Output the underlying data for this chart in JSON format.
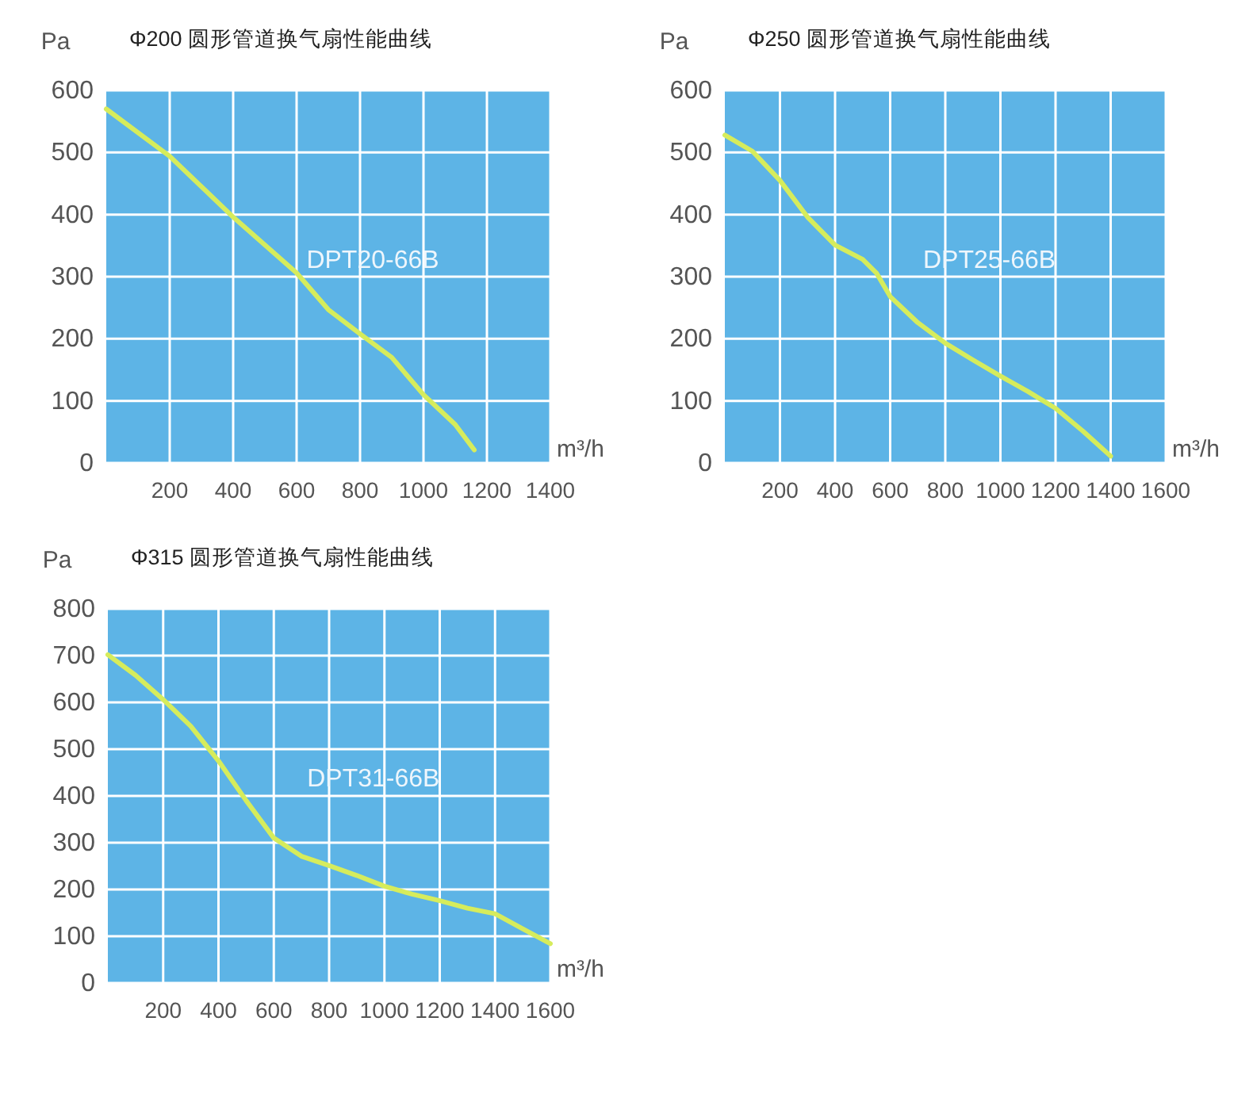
{
  "chart_data": [
    {
      "type": "line",
      "title": "Φ200 圆形管道换气扇性能曲线",
      "xlabel": "m³/h",
      "ylabel": "Pa",
      "grid": true,
      "xlim": [
        0,
        1400
      ],
      "ylim": [
        0,
        600
      ],
      "xticks": [
        200,
        400,
        600,
        800,
        1000,
        1200,
        1400
      ],
      "yticks": [
        0,
        100,
        200,
        300,
        400,
        500,
        600
      ],
      "x": [
        0,
        200,
        400,
        600,
        700,
        800,
        900,
        1000,
        1100,
        1160
      ],
      "series": [
        {
          "name": "DPT20-66B",
          "color": "#d6ec5c",
          "values": [
            570,
            494,
            396,
            306,
            247,
            208,
            170,
            110,
            62,
            21
          ]
        }
      ]
    },
    {
      "type": "line",
      "title": "Φ250 圆形管道换气扇性能曲线",
      "xlabel": "m³/h",
      "ylabel": "Pa",
      "grid": true,
      "xlim": [
        0,
        1600
      ],
      "ylim": [
        0,
        600
      ],
      "xticks": [
        200,
        400,
        600,
        800,
        1000,
        1200,
        1400,
        1600
      ],
      "yticks": [
        0,
        100,
        200,
        300,
        400,
        500,
        600
      ],
      "x": [
        0,
        100,
        200,
        300,
        400,
        500,
        550,
        600,
        700,
        800,
        900,
        1000,
        1100,
        1200,
        1300,
        1400
      ],
      "series": [
        {
          "name": "DPT25-66B",
          "color": "#d6ec5c",
          "values": [
            528,
            502,
            455,
            396,
            351,
            328,
            306,
            268,
            226,
            193,
            166,
            140,
            115,
            88,
            51,
            11
          ]
        }
      ]
    },
    {
      "type": "line",
      "title": "Φ315 圆形管道换气扇性能曲线",
      "xlabel": "m³/h",
      "ylabel": "Pa",
      "grid": true,
      "xlim": [
        0,
        1600
      ],
      "ylim": [
        0,
        800
      ],
      "xticks": [
        200,
        400,
        600,
        800,
        1000,
        1200,
        1400,
        1600
      ],
      "yticks": [
        0,
        100,
        200,
        300,
        400,
        500,
        600,
        700,
        800
      ],
      "x": [
        0,
        100,
        200,
        300,
        400,
        500,
        600,
        700,
        800,
        900,
        1000,
        1100,
        1200,
        1300,
        1400,
        1500,
        1600
      ],
      "series": [
        {
          "name": "DPT31-66B",
          "color": "#d6ec5c",
          "values": [
            702,
            658,
            606,
            549,
            475,
            390,
            310,
            271,
            251,
            230,
            207,
            190,
            176,
            160,
            148,
            116,
            84
          ]
        }
      ]
    }
  ]
}
